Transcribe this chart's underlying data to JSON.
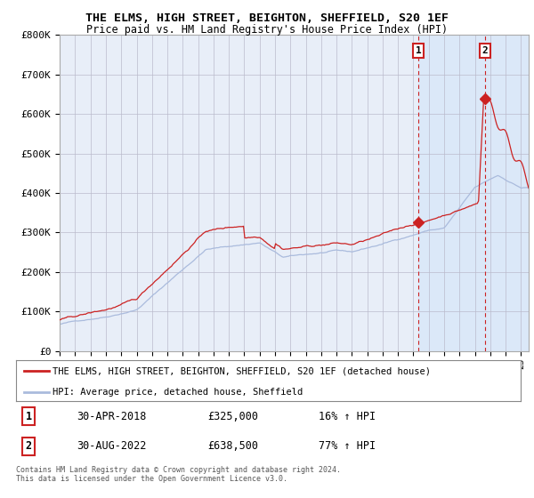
{
  "title_line1": "THE ELMS, HIGH STREET, BEIGHTON, SHEFFIELD, S20 1EF",
  "title_line2": "Price paid vs. HM Land Registry's House Price Index (HPI)",
  "ylabel_ticks": [
    "£0",
    "£100K",
    "£200K",
    "£300K",
    "£400K",
    "£500K",
    "£600K",
    "£700K",
    "£800K"
  ],
  "ytick_values": [
    0,
    100000,
    200000,
    300000,
    400000,
    500000,
    600000,
    700000,
    800000
  ],
  "ylim": [
    0,
    800000
  ],
  "xlim_start": 1995.0,
  "xlim_end": 2025.5,
  "hpi_color": "#aabbdd",
  "price_color": "#cc2222",
  "marker1_year": 2018.33,
  "marker1_price": 325000,
  "marker2_year": 2022.67,
  "marker2_price": 638500,
  "vline1_year": 2018.33,
  "vline2_year": 2022.67,
  "shade_start": 2018.33,
  "shade_color": "#ddeeff",
  "legend_line1": "THE ELMS, HIGH STREET, BEIGHTON, SHEFFIELD, S20 1EF (detached house)",
  "legend_line2": "HPI: Average price, detached house, Sheffield",
  "table_row1": [
    "1",
    "30-APR-2018",
    "£325,000",
    "16% ↑ HPI"
  ],
  "table_row2": [
    "2",
    "30-AUG-2022",
    "£638,500",
    "77% ↑ HPI"
  ],
  "footnote": "Contains HM Land Registry data © Crown copyright and database right 2024.\nThis data is licensed under the Open Government Licence v3.0.",
  "background_color": "#ffffff",
  "plot_bg_color": "#e8eef8",
  "grid_color": "#cccccc"
}
